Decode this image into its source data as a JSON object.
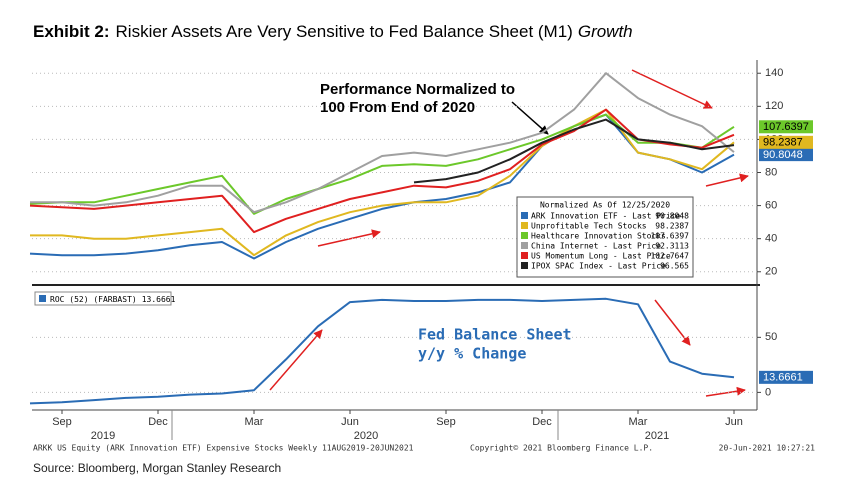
{
  "header": {
    "title_label": "Exhibit 2:",
    "title": "Riskier Assets Are Very Sensitive to Fed Balance Sheet (M1)",
    "title_emphasis": "Growth"
  },
  "chart_data": [
    {
      "type": "line",
      "annotation": [
        "Performance Normalized to",
        "100 From End of 2020"
      ],
      "legend_title": "Normalized As Of 12/25/2020",
      "categories": [
        null,
        "Sep",
        null,
        null,
        "Dec",
        null,
        null,
        "Mar",
        null,
        null,
        "Jun",
        null,
        null,
        "Sep",
        null,
        null,
        "Dec",
        null,
        null,
        "Mar",
        null,
        null,
        "Jun"
      ],
      "ylim": [
        12,
        148
      ],
      "yticks": [
        20,
        40,
        60,
        80,
        100,
        120,
        140
      ],
      "grid": true,
      "series": [
        {
          "name": "ARK Innovation ETF - Last Price",
          "color": "#2a6cb5",
          "value_tag": true,
          "values": [
            31,
            30,
            30,
            31,
            33,
            36,
            38,
            28,
            38,
            46,
            52,
            58,
            62,
            64,
            68,
            74,
            96,
            108,
            115,
            92,
            88,
            80,
            90.8048
          ]
        },
        {
          "name": "Unprofitable Tech Stocks",
          "color": "#e0b820",
          "value_tag": true,
          "values": [
            42,
            42,
            40,
            40,
            42,
            44,
            46,
            30,
            42,
            50,
            56,
            60,
            62,
            62,
            66,
            78,
            96,
            108,
            118,
            92,
            88,
            82,
            98.2387
          ]
        },
        {
          "name": "Healthcare Innovation Stocks",
          "color": "#6cc82a",
          "value_tag": true,
          "values": [
            61,
            62,
            62,
            66,
            70,
            74,
            78,
            55,
            64,
            70,
            76,
            84,
            85,
            84,
            88,
            94,
            100,
            108,
            115,
            98,
            98,
            95,
            107.6397
          ]
        },
        {
          "name": "China Internet - Last Price",
          "color": "#a0a0a0",
          "value_tag": false,
          "values": [
            62,
            62,
            60,
            62,
            66,
            72,
            72,
            56,
            62,
            70,
            80,
            90,
            92,
            90,
            94,
            98,
            104,
            118,
            140,
            125,
            115,
            108,
            92.3113
          ]
        },
        {
          "name": "US Momentum Long - Last Price",
          "color": "#e02020",
          "value_tag": false,
          "values": [
            60,
            59,
            58,
            60,
            62,
            64,
            66,
            44,
            52,
            58,
            64,
            68,
            72,
            71,
            75,
            82,
            97,
            105,
            118,
            100,
            97,
            95,
            102.7647
          ]
        },
        {
          "name": "IPOX SPAC Index - Last Price",
          "color": "#222222",
          "value_tag": false,
          "values": [
            null,
            null,
            null,
            null,
            null,
            null,
            null,
            null,
            null,
            null,
            null,
            null,
            74,
            76,
            80,
            88,
            98,
            106,
            112,
            100,
            98,
            94,
            96.565
          ]
        }
      ]
    },
    {
      "type": "line",
      "annotation": [
        "Fed Balance Sheet",
        "y/y % Change"
      ],
      "categories": [
        null,
        "Sep",
        null,
        null,
        "Dec",
        null,
        null,
        "Mar",
        null,
        null,
        "Jun",
        null,
        null,
        "Sep",
        null,
        null,
        "Dec",
        null,
        null,
        "Mar",
        null,
        null,
        "Jun"
      ],
      "x_group_labels": [
        "2019",
        "2020",
        "2021"
      ],
      "ylim": [
        -16,
        93
      ],
      "yticks": [
        0,
        50
      ],
      "grid": true,
      "series": [
        {
          "name": "ROC (52) (FARBAST)",
          "color": "#2a6cb5",
          "value_tag": true,
          "values": [
            -10,
            -9,
            -7,
            -5,
            -4,
            -2,
            -1,
            2,
            30,
            60,
            82,
            84,
            83,
            83,
            84,
            84,
            83,
            84,
            85,
            80,
            28,
            17,
            13.6661
          ]
        }
      ]
    }
  ],
  "footer": {
    "left": "ARKK US Equity (ARK Innovation ETF) Expensive Stocks  Weekly 11AUG2019-20JUN2021",
    "center": "Copyright© 2021 Bloomberg Finance L.P.",
    "right": "20-Jun-2021 10:27:21",
    "source": "Source: Bloomberg, Morgan Stanley Research"
  }
}
